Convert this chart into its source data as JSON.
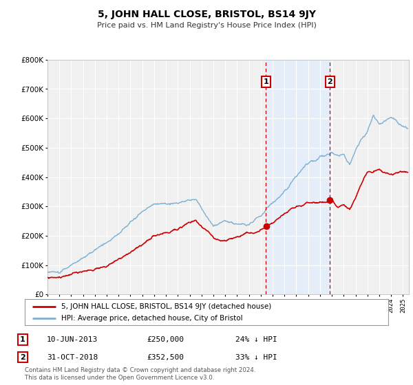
{
  "title": "5, JOHN HALL CLOSE, BRISTOL, BS14 9JY",
  "subtitle": "Price paid vs. HM Land Registry's House Price Index (HPI)",
  "legend_entry1": "5, JOHN HALL CLOSE, BRISTOL, BS14 9JY (detached house)",
  "legend_entry2": "HPI: Average price, detached house, City of Bristol",
  "annotation1_label": "1",
  "annotation1_date": "10-JUN-2013",
  "annotation1_price": "£250,000",
  "annotation1_hpi": "24% ↓ HPI",
  "annotation1_date_num": 2013.44,
  "annotation1_value": 250000,
  "annotation2_label": "2",
  "annotation2_date": "31-OCT-2018",
  "annotation2_price": "£352,500",
  "annotation2_hpi": "33% ↓ HPI",
  "annotation2_date_num": 2018.83,
  "annotation2_value": 352500,
  "footnote1": "Contains HM Land Registry data © Crown copyright and database right 2024.",
  "footnote2": "This data is licensed under the Open Government Licence v3.0.",
  "hpi_color": "#7ab0d4",
  "price_color": "#cc0000",
  "bg_color": "#ffffff",
  "plot_bg_color": "#f0f0f0",
  "grid_color": "#ffffff",
  "shade_color": "#ddeeff",
  "ylim_max": 800000,
  "ylim_min": 0,
  "xlim_min": 1995,
  "xlim_max": 2025.5
}
